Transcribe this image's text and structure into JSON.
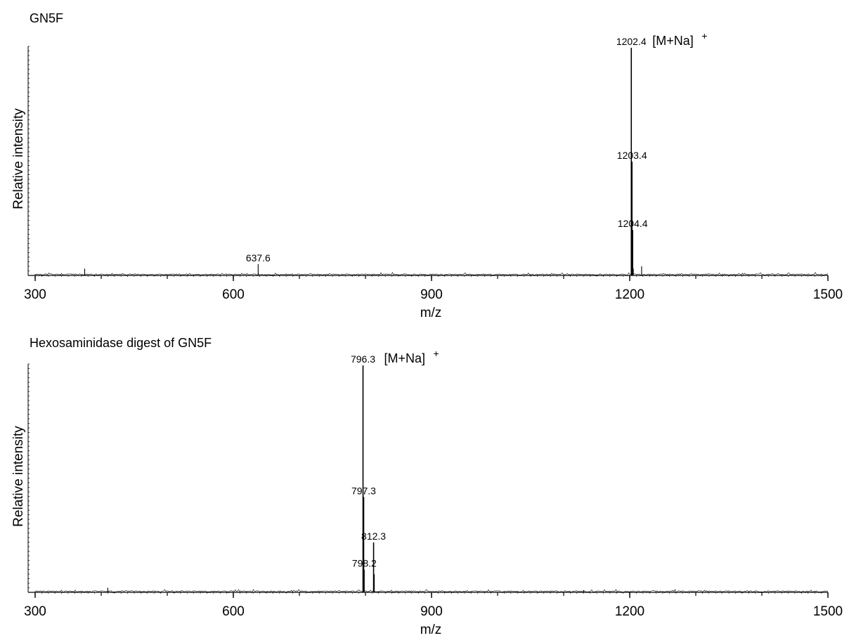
{
  "chart_data": [
    {
      "type": "line",
      "title": "GN5F",
      "xlabel": "m/z",
      "ylabel": "Relative intensity",
      "xlim": [
        300,
        1500
      ],
      "ylim": [
        0,
        100
      ],
      "x_ticks": [
        300,
        600,
        900,
        1200,
        1500
      ],
      "x_tick_labels": [
        "300",
        "600",
        "900",
        "1200",
        "1500"
      ],
      "grid": false,
      "legend": "none",
      "peaks": [
        {
          "mz": 375,
          "intensity": 3
        },
        {
          "mz": 637.6,
          "intensity": 5,
          "label": "637.6"
        },
        {
          "mz": 1202.4,
          "intensity": 100,
          "label": "1202.4",
          "annotation": "[M+Na]",
          "annotation_sup": "+"
        },
        {
          "mz": 1203.4,
          "intensity": 50,
          "label": "1203.4"
        },
        {
          "mz": 1204.4,
          "intensity": 20,
          "label": "1204.4"
        },
        {
          "mz": 1205.4,
          "intensity": 3
        },
        {
          "mz": 1218,
          "intensity": 4
        }
      ]
    },
    {
      "type": "line",
      "title": "Hexosaminidase digest of GN5F",
      "xlabel": "m/z",
      "ylabel": "Relative intensity",
      "xlim": [
        300,
        1500
      ],
      "ylim": [
        0,
        100
      ],
      "x_ticks": [
        300,
        600,
        900,
        1200,
        1500
      ],
      "x_tick_labels": [
        "300",
        "600",
        "900",
        "1200",
        "1500"
      ],
      "grid": false,
      "legend": "none",
      "peaks": [
        {
          "mz": 410,
          "intensity": 2
        },
        {
          "mz": 796.3,
          "intensity": 100,
          "label": "796.3",
          "annotation": "[M+Na]",
          "annotation_sup": "+"
        },
        {
          "mz": 797.3,
          "intensity": 42,
          "label": "797.3"
        },
        {
          "mz": 798.2,
          "intensity": 10,
          "label": "798.2"
        },
        {
          "mz": 812.3,
          "intensity": 22,
          "label": "812.3"
        },
        {
          "mz": 813.3,
          "intensity": 8
        },
        {
          "mz": 1130,
          "intensity": 1
        }
      ]
    }
  ]
}
